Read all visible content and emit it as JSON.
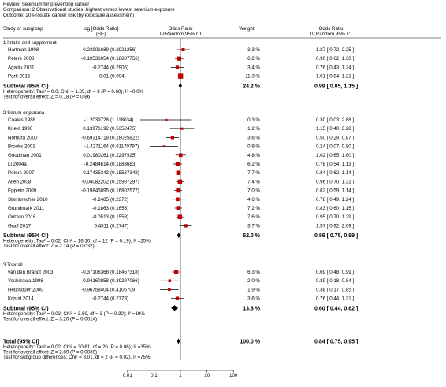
{
  "header": {
    "review": "Review: Selenium for preventing cancer",
    "comparison": "Comparison: 2 Observational studies: highest versus lowest selenium exposure",
    "outcome": "Outcome: 20 Prostate cancer risk (by exposure assessment)"
  },
  "columns": {
    "study": "Study or subgroup",
    "logor": "log [Odds Ratio]",
    "logor_se": "(SE)",
    "or_plot": "Odds Ratio",
    "or_plot_method": "IV,Random,95% CI",
    "weight": "Weight",
    "or_text": "Odds Ratio",
    "or_text_method": "IV,Random,95% CI"
  },
  "colors": {
    "square": "#c00000",
    "line": "#000000",
    "axis": "#000000"
  },
  "chart_data": {
    "type": "forest",
    "x_scale": "log",
    "xlim": [
      0.01,
      100
    ],
    "x_ticks": [
      0.01,
      0.1,
      1,
      10,
      100
    ],
    "x_tick_labels": [
      "0.01",
      "0.1",
      "1",
      "10",
      "100"
    ],
    "reference_line": 1,
    "groups": [
      {
        "name": "1 Intake and supplement",
        "studies": [
          {
            "study": "Hartman 1998",
            "logor": "0.23901689",
            "se": "(0.2921256)",
            "or": 1.27,
            "lo": 0.72,
            "hi": 2.25,
            "weight": "3.3 %",
            "ci_text": "1.27 [ 0.72, 2.25 ]"
          },
          {
            "study": "Peters 2008",
            "logor": "-0.10536054",
            "se": "(0.18887756)",
            "or": 0.9,
            "lo": 0.62,
            "hi": 1.3,
            "weight": "6.2 %",
            "ci_text": "0.90 [ 0.62, 1.30 ]"
          },
          {
            "study": "Agalliu 2011",
            "logor": "-0.2744",
            "se": "(0.2906)",
            "or": 0.76,
            "lo": 0.43,
            "hi": 1.34,
            "weight": "3.4 %",
            "ci_text": "0.76 [ 0.43, 1.34 ]"
          },
          {
            "study": "Park 2015",
            "logor": "0.01",
            "se": "(0.094)",
            "or": 1.01,
            "lo": 0.84,
            "hi": 1.21,
            "weight": "11.3 %",
            "ci_text": "1.01 [ 0.84, 1.21 ]"
          }
        ],
        "subtotal": {
          "label": "Subtotal (95% CI)",
          "or": 0.99,
          "lo": 0.85,
          "hi": 1.15,
          "weight": "24.2 %",
          "ci_text": "0.99 [ 0.85, 1.15 ]"
        },
        "heterogeneity": "Heterogeneity: Tau² = 0.0; Chi² = 1.85, df = 3 (P = 0.60); I² =0.0%",
        "effect": "Test for overall effect: Z = 0.18 (P = 0.86)"
      },
      {
        "name": "2 Serum or plasma",
        "studies": [
          {
            "study": "Coates 1988",
            "logor": "-1.2039728",
            "se": "(1.118034)",
            "or": 0.3,
            "lo": 0.03,
            "hi": 2.68,
            "weight": "0.3 %",
            "ci_text": "0.30 [ 0.03, 2.68 ]"
          },
          {
            "study": "Knekt 1990",
            "logor": "0.13976192",
            "se": "(0.5352475)",
            "or": 1.15,
            "lo": 0.4,
            "hi": 3.28,
            "weight": "1.2 %",
            "ci_text": "1.15 [ 0.40, 3.28 ]"
          },
          {
            "study": "Nomura 2000",
            "logor": "-0.69314718",
            "se": "(0.28025822)",
            "or": 0.5,
            "lo": 0.29,
            "hi": 0.87,
            "weight": "3.6 %",
            "ci_text": "0.50 [ 0.29, 0.87 ]"
          },
          {
            "study": "Brooks 2001",
            "logor": "-1.4271164",
            "se": "(0.61170797)",
            "or": 0.24,
            "lo": 0.07,
            "hi": 0.8,
            "weight": "0.9 %",
            "ci_text": "0.24 [ 0.07, 0.80 ]"
          },
          {
            "study": "Goodman 2001",
            "logor": "0.01980261",
            "se": "(0.2297925)",
            "or": 1.02,
            "lo": 0.65,
            "hi": 1.6,
            "weight": "4.8 %",
            "ci_text": "1.02 [ 0.65, 1.60 ]"
          },
          {
            "study": "Li 2004a",
            "logor": "-0.2484614",
            "se": "(0.1883683)",
            "or": 0.78,
            "lo": 0.54,
            "hi": 1.13,
            "weight": "6.2 %",
            "ci_text": "0.78 [ 0.54, 1.13 ]"
          },
          {
            "study": "Peters 2007",
            "logor": "-0.17435342",
            "se": "(0.15537348)",
            "or": 0.84,
            "lo": 0.62,
            "hi": 1.14,
            "weight": "7.7 %",
            "ci_text": "0.84 [ 0.62, 1.14 ]"
          },
          {
            "study": "Allen 2008",
            "logor": "-0.04082202",
            "se": "(0.15987297)",
            "or": 0.96,
            "lo": 0.7,
            "hi": 1.31,
            "weight": "7.4 %",
            "ci_text": "0.96 [ 0.70, 1.31 ]"
          },
          {
            "study": "Epplein 2009",
            "logor": "-0.19845095",
            "se": "(0.16802577)",
            "or": 0.82,
            "lo": 0.59,
            "hi": 1.14,
            "weight": "7.0 %",
            "ci_text": "0.82 [ 0.59, 1.14 ]"
          },
          {
            "study": "Steinbrecher 2010",
            "logor": "-0.2485",
            "se": "(0.2372)",
            "or": 0.78,
            "lo": 0.49,
            "hi": 1.24,
            "weight": "4.6 %",
            "ci_text": "0.78 [ 0.49, 1.24 ]"
          },
          {
            "study": "Grundmark 2011",
            "logor": "-0.1863",
            "se": "(0.1656)",
            "or": 0.83,
            "lo": 0.6,
            "hi": 1.15,
            "weight": "7.2 %",
            "ci_text": "0.83 [ 0.60, 1.15 ]"
          },
          {
            "study": "Outzen 2016",
            "logor": "-0.0513",
            "se": "(0.1558)",
            "or": 0.95,
            "lo": 0.7,
            "hi": 1.29,
            "weight": "7.6 %",
            "ci_text": "0.95 [ 0.70, 1.29 ]"
          },
          {
            "study": "Graff 2017",
            "logor": "0.4511",
            "se": "(0.2747)",
            "or": 1.57,
            "lo": 0.92,
            "hi": 2.69,
            "weight": "3.7 %",
            "ci_text": "1.57 [ 0.92, 2.69 ]"
          }
        ],
        "subtotal": {
          "label": "Subtotal (95% CI)",
          "or": 0.86,
          "lo": 0.75,
          "hi": 0.99,
          "weight": "62.0 %",
          "ci_text": "0.86 [ 0.75, 0.99 ]"
        },
        "heterogeneity": "Heterogeneity: Tau² = 0.02; Chi² = 16.10, df = 12 (P = 0.19); I² =25%",
        "effect": "Test for overall effect: Z = 2.14 (P = 0.032)"
      },
      {
        "name": "3 Toenail",
        "studies": [
          {
            "study": "van den Brandt 2003",
            "logor": "-0.37106368",
            "se": "(0.18467318)",
            "or": 0.69,
            "lo": 0.48,
            "hi": 0.99,
            "weight": "6.3 %",
            "ci_text": "0.69 [ 0.48, 0.99 ]"
          },
          {
            "study": "Yoshizawa 1998",
            "logor": "-0.94160858",
            "se": "(0.39297066)",
            "or": 0.39,
            "lo": 0.18,
            "hi": 0.84,
            "weight": "2.0 %",
            "ci_text": "0.39 [ 0.18, 0.84 ]"
          },
          {
            "study": "Helzlsouer 2000",
            "logor": "-0.96758404",
            "se": "(0.4105709)",
            "or": 0.38,
            "lo": 0.17,
            "hi": 0.85,
            "weight": "1.9 %",
            "ci_text": "0.38 [ 0.17, 0.85 ]"
          },
          {
            "study": "Kristal 2014",
            "logor": "-0.2744",
            "se": "(0.2778)",
            "or": 0.76,
            "lo": 0.44,
            "hi": 1.31,
            "weight": "3.6 %",
            "ci_text": "0.76 [ 0.44, 1.31 ]"
          }
        ],
        "subtotal": {
          "label": "Subtotal (95% CI)",
          "or": 0.6,
          "lo": 0.44,
          "hi": 0.82,
          "weight": "13.8 %",
          "ci_text": "0.60 [ 0.44, 0.82 ]"
        },
        "heterogeneity": "Heterogeneity: Tau² = 0.02; Chi² = 3.69, df = 3 (P = 0.30); I² =19%",
        "effect": "Test for overall effect: Z = 3.20 (P = 0.0014)"
      }
    ],
    "total": {
      "label": "Total (95% CI)",
      "or": 0.84,
      "lo": 0.75,
      "hi": 0.95,
      "weight": "100.0 %",
      "ci_text": "0.84 [ 0.75, 0.95 ]",
      "heterogeneity": "Heterogeneity: Tau² = 0.02; Chi² = 30.61, df = 20 (P = 0.06); I² =35%",
      "effect": "Test for overall effect: Z = 2.89 (P = 0.0039)",
      "subgroup": "Test for subgroup differences: Chi² = 8.01, df = 2 (P = 0.02), I² =75%"
    }
  }
}
